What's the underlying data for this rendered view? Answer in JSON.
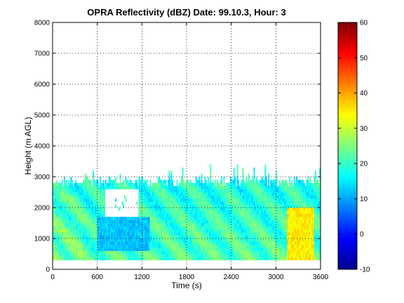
{
  "chart_data": {
    "type": "heatmap",
    "title": "OPRA Reflectivity (dBZ)  Date: 99.10.3, Hour: 3",
    "xlabel": "Time (s)",
    "ylabel": "Height (m AGL)",
    "xlim": [
      0,
      3600
    ],
    "ylim": [
      0,
      8000
    ],
    "x_ticks": [
      "0",
      "600",
      "1200",
      "1800",
      "2400",
      "3000",
      "3600"
    ],
    "x_tick_values": [
      0,
      600,
      1200,
      1800,
      2400,
      3000,
      3600
    ],
    "y_ticks": [
      "0",
      "1000",
      "2000",
      "3000",
      "4000",
      "5000",
      "6000",
      "7000",
      "8000"
    ],
    "y_tick_values": [
      0,
      1000,
      2000,
      3000,
      4000,
      5000,
      6000,
      7000,
      8000
    ],
    "grid": true,
    "grid_style": "dotted",
    "colorbar": {
      "min": -10,
      "max": 60,
      "colormap": "jet",
      "ticks": [
        "-10",
        "0",
        "10",
        "20",
        "30",
        "40",
        "50",
        "60"
      ],
      "tick_values": [
        -10,
        0,
        10,
        20,
        30,
        40,
        50,
        60
      ]
    },
    "echo_region": {
      "time_range_s": [
        0,
        3600
      ],
      "base_height_m": 300,
      "top_height_m": 3000,
      "max_top_height_m": 3400,
      "typical_dbz_range": [
        15,
        35
      ],
      "features": [
        {
          "name": "weak echo pocket",
          "time_range_s": [
            600,
            1300
          ],
          "height_range_m": [
            600,
            1700
          ],
          "dbz": 12
        },
        {
          "name": "missing data gap",
          "time_range_s": [
            700,
            1150
          ],
          "height_range_m": [
            1700,
            2600
          ],
          "dbz": null
        },
        {
          "name": "strong streak",
          "time_range_s": [
            3150,
            3500
          ],
          "height_range_m": [
            300,
            2000
          ],
          "dbz": 35
        }
      ]
    }
  }
}
